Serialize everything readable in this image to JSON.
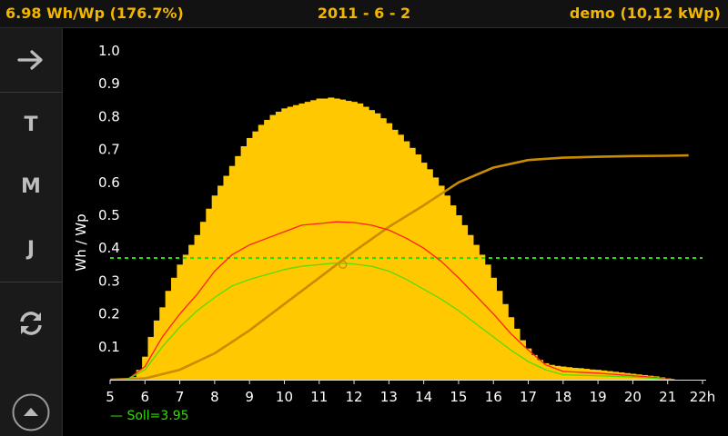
{
  "header": {
    "left": "6.98 Wh/Wp (176.7%)",
    "center": "2011 - 6 - 2",
    "right": "demo (10,12 kWp)",
    "color": "#f3b600"
  },
  "sidebar": {
    "buttons": [
      {
        "name": "forward-arrow-icon",
        "icon": "arrow-right"
      },
      {
        "name": "tag-button",
        "label": "T"
      },
      {
        "name": "monat-button",
        "label": "M"
      },
      {
        "name": "jahr-button",
        "label": "J"
      },
      {
        "name": "refresh-icon",
        "icon": "refresh"
      }
    ],
    "menu_icon": "chevron-up-circle"
  },
  "chart_data": {
    "type": "bar",
    "ylabel": "Wh / Wp",
    "xlabel": "",
    "x_ticks": [
      "5",
      "6",
      "7",
      "8",
      "9",
      "10",
      "11",
      "12",
      "13",
      "14",
      "15",
      "16",
      "17",
      "18",
      "19",
      "20",
      "21",
      "22h"
    ],
    "y_ticks": [
      "0.1",
      "0.2",
      "0.3",
      "0.4",
      "0.5",
      "0.6",
      "0.7",
      "0.8",
      "0.9",
      "1.0"
    ],
    "xlim": [
      5,
      22
    ],
    "ylim": [
      0,
      1.0
    ],
    "legend": "— Soll=3.95",
    "bar_width_h": 0.1667,
    "colors": {
      "bars": "#ffc800",
      "red": "#ff1f1f",
      "green": "#55dd00",
      "cumulative": "#c88c00",
      "reference": "#22dd00"
    },
    "reference_level": 0.37,
    "marker": {
      "x": 11.68,
      "y": 0.35
    },
    "bars": [
      [
        5.5,
        0.002
      ],
      [
        5.6667,
        0.008
      ],
      [
        5.8333,
        0.03
      ],
      [
        6.0,
        0.07
      ],
      [
        6.1667,
        0.13
      ],
      [
        6.3333,
        0.18
      ],
      [
        6.5,
        0.22
      ],
      [
        6.6667,
        0.27
      ],
      [
        6.8333,
        0.31
      ],
      [
        7.0,
        0.35
      ],
      [
        7.1667,
        0.38
      ],
      [
        7.3333,
        0.41
      ],
      [
        7.5,
        0.44
      ],
      [
        7.6667,
        0.48
      ],
      [
        7.8333,
        0.52
      ],
      [
        8.0,
        0.56
      ],
      [
        8.1667,
        0.59
      ],
      [
        8.3333,
        0.62
      ],
      [
        8.5,
        0.65
      ],
      [
        8.6667,
        0.68
      ],
      [
        8.8333,
        0.71
      ],
      [
        9.0,
        0.735
      ],
      [
        9.1667,
        0.755
      ],
      [
        9.3333,
        0.775
      ],
      [
        9.5,
        0.79
      ],
      [
        9.6667,
        0.805
      ],
      [
        9.8333,
        0.815
      ],
      [
        10.0,
        0.825
      ],
      [
        10.1667,
        0.83
      ],
      [
        10.3333,
        0.835
      ],
      [
        10.5,
        0.84
      ],
      [
        10.6667,
        0.845
      ],
      [
        10.8333,
        0.85
      ],
      [
        11.0,
        0.855
      ],
      [
        11.1667,
        0.855
      ],
      [
        11.3333,
        0.858
      ],
      [
        11.5,
        0.855
      ],
      [
        11.6667,
        0.852
      ],
      [
        11.8333,
        0.848
      ],
      [
        12.0,
        0.845
      ],
      [
        12.1667,
        0.84
      ],
      [
        12.3333,
        0.83
      ],
      [
        12.5,
        0.82
      ],
      [
        12.6667,
        0.81
      ],
      [
        12.8333,
        0.795
      ],
      [
        13.0,
        0.78
      ],
      [
        13.1667,
        0.76
      ],
      [
        13.3333,
        0.745
      ],
      [
        13.5,
        0.725
      ],
      [
        13.6667,
        0.705
      ],
      [
        13.8333,
        0.685
      ],
      [
        14.0,
        0.66
      ],
      [
        14.1667,
        0.64
      ],
      [
        14.3333,
        0.615
      ],
      [
        14.5,
        0.59
      ],
      [
        14.6667,
        0.56
      ],
      [
        14.8333,
        0.53
      ],
      [
        15.0,
        0.5
      ],
      [
        15.1667,
        0.47
      ],
      [
        15.3333,
        0.44
      ],
      [
        15.5,
        0.41
      ],
      [
        15.6667,
        0.38
      ],
      [
        15.8333,
        0.35
      ],
      [
        16.0,
        0.31
      ],
      [
        16.1667,
        0.27
      ],
      [
        16.3333,
        0.23
      ],
      [
        16.5,
        0.19
      ],
      [
        16.6667,
        0.155
      ],
      [
        16.8333,
        0.12
      ],
      [
        17.0,
        0.095
      ],
      [
        17.1667,
        0.075
      ],
      [
        17.3333,
        0.06
      ],
      [
        17.5,
        0.05
      ],
      [
        17.6667,
        0.045
      ],
      [
        17.8333,
        0.042
      ],
      [
        18.0,
        0.04
      ],
      [
        18.1667,
        0.038
      ],
      [
        18.3333,
        0.036
      ],
      [
        18.5,
        0.035
      ],
      [
        18.6667,
        0.033
      ],
      [
        18.8333,
        0.031
      ],
      [
        19.0,
        0.03
      ],
      [
        19.1667,
        0.028
      ],
      [
        19.3333,
        0.026
      ],
      [
        19.5,
        0.024
      ],
      [
        19.6667,
        0.022
      ],
      [
        19.8333,
        0.02
      ],
      [
        20.0,
        0.018
      ],
      [
        20.1667,
        0.016
      ],
      [
        20.3333,
        0.014
      ],
      [
        20.5,
        0.012
      ],
      [
        20.6667,
        0.01
      ],
      [
        20.8333,
        0.007
      ],
      [
        21.0,
        0.004
      ]
    ],
    "red_line": [
      [
        5,
        0
      ],
      [
        5.5,
        0.001
      ],
      [
        6,
        0.04
      ],
      [
        6.5,
        0.13
      ],
      [
        7,
        0.2
      ],
      [
        7.5,
        0.26
      ],
      [
        8,
        0.33
      ],
      [
        8.5,
        0.38
      ],
      [
        9,
        0.41
      ],
      [
        9.5,
        0.43
      ],
      [
        10,
        0.45
      ],
      [
        10.5,
        0.47
      ],
      [
        11,
        0.475
      ],
      [
        11.5,
        0.48
      ],
      [
        12,
        0.478
      ],
      [
        12.5,
        0.47
      ],
      [
        13,
        0.455
      ],
      [
        13.5,
        0.43
      ],
      [
        14,
        0.4
      ],
      [
        14.5,
        0.36
      ],
      [
        15,
        0.31
      ],
      [
        15.5,
        0.255
      ],
      [
        16,
        0.2
      ],
      [
        16.5,
        0.14
      ],
      [
        17,
        0.09
      ],
      [
        17.5,
        0.045
      ],
      [
        18,
        0.025
      ],
      [
        19,
        0.02
      ],
      [
        20,
        0.012
      ],
      [
        20.5,
        0.008
      ],
      [
        21,
        0.002
      ],
      [
        21.2,
        0
      ]
    ],
    "green_line": [
      [
        5,
        0
      ],
      [
        5.5,
        0.001
      ],
      [
        6,
        0.03
      ],
      [
        6.5,
        0.1
      ],
      [
        7,
        0.16
      ],
      [
        7.5,
        0.21
      ],
      [
        8,
        0.25
      ],
      [
        8.5,
        0.285
      ],
      [
        9,
        0.305
      ],
      [
        9.5,
        0.32
      ],
      [
        10,
        0.335
      ],
      [
        10.5,
        0.345
      ],
      [
        11,
        0.35
      ],
      [
        11.5,
        0.355
      ],
      [
        12,
        0.352
      ],
      [
        12.5,
        0.345
      ],
      [
        13,
        0.33
      ],
      [
        13.5,
        0.305
      ],
      [
        14,
        0.275
      ],
      [
        14.5,
        0.245
      ],
      [
        15,
        0.21
      ],
      [
        15.5,
        0.17
      ],
      [
        16,
        0.13
      ],
      [
        16.5,
        0.09
      ],
      [
        17,
        0.055
      ],
      [
        17.5,
        0.03
      ],
      [
        18,
        0.015
      ],
      [
        19,
        0.012
      ],
      [
        20,
        0.008
      ],
      [
        20.5,
        0.005
      ],
      [
        21,
        0.001
      ],
      [
        21.2,
        0
      ]
    ],
    "cumulative_line": [
      [
        5,
        0
      ],
      [
        6,
        0.004
      ],
      [
        7,
        0.03
      ],
      [
        8,
        0.08
      ],
      [
        9,
        0.15
      ],
      [
        10,
        0.23
      ],
      [
        11,
        0.31
      ],
      [
        12,
        0.39
      ],
      [
        13,
        0.465
      ],
      [
        14,
        0.53
      ],
      [
        15,
        0.6
      ],
      [
        16,
        0.645
      ],
      [
        17,
        0.668
      ],
      [
        18,
        0.675
      ],
      [
        19,
        0.678
      ],
      [
        20,
        0.68
      ],
      [
        21,
        0.681
      ],
      [
        21.6,
        0.682
      ]
    ]
  }
}
